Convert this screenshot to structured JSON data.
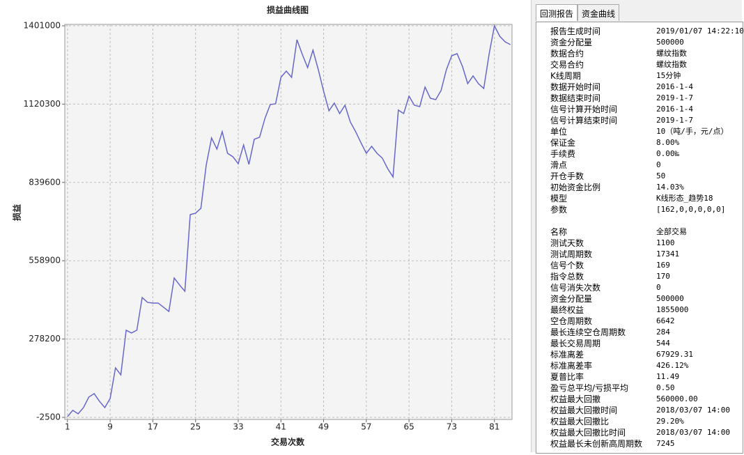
{
  "chart_data": {
    "type": "line",
    "title": "损益曲线图",
    "x_label": "交易次数",
    "y_label": "损益",
    "x": [
      1,
      2,
      3,
      4,
      5,
      6,
      7,
      8,
      9,
      10,
      11,
      12,
      13,
      14,
      15,
      16,
      17,
      18,
      19,
      20,
      21,
      22,
      23,
      24,
      25,
      26,
      27,
      28,
      29,
      30,
      31,
      32,
      33,
      34,
      35,
      36,
      37,
      38,
      39,
      40,
      41,
      42,
      43,
      44,
      45,
      46,
      47,
      48,
      49,
      50,
      51,
      52,
      53,
      54,
      55,
      56,
      57,
      58,
      59,
      60,
      61,
      62,
      63,
      64,
      65,
      66,
      67,
      68,
      69,
      70,
      71,
      72,
      73,
      74,
      75,
      76,
      77,
      78,
      79,
      80,
      81,
      82,
      83,
      84
    ],
    "series": [
      {
        "color": "#6666cc",
        "values": [
          0,
          22700,
          10200,
          32600,
          70100,
          82600,
          55100,
          32600,
          65100,
          175000,
          150000,
          309800,
          299800,
          309800,
          427200,
          409700,
          407200,
          407200,
          392200,
          377200,
          497100,
          472100,
          449600,
          724300,
          729300,
          746800,
          901600,
          999000,
          959000,
          1021500,
          944000,
          931600,
          906600,
          974000,
          904100,
          994000,
          1001500,
          1068900,
          1118800,
          1121300,
          1216200,
          1238700,
          1216200,
          1351100,
          1298600,
          1251200,
          1313600,
          1243700,
          1166300,
          1096400,
          1123800,
          1086400,
          1116300,
          1056400,
          1021500,
          981500,
          944000,
          969000,
          944000,
          926600,
          889100,
          859200,
          1098900,
          1086400,
          1148800,
          1116300,
          1111300,
          1181300,
          1141300,
          1136300,
          1168800,
          1243700,
          1293600,
          1301100,
          1256200,
          1193700,
          1221200,
          1193700,
          1176300,
          1298600,
          1401000,
          1363500,
          1343600,
          1333600
        ]
      }
    ],
    "xlim": [
      0.5,
      84.3
    ],
    "xticks": [
      1,
      9,
      17,
      25,
      33,
      41,
      49,
      57,
      65,
      73,
      81
    ],
    "ylim": [
      -2500,
      1401000
    ],
    "yticks": [
      -2500,
      278200,
      558900,
      839600,
      1120300,
      1401000
    ],
    "grid": true
  },
  "report": {
    "tabs": [
      "回测报告",
      "资金曲线"
    ],
    "groups": [
      [
        [
          "报告生成时间",
          "2019/01/07 14:22:10"
        ],
        [
          "资金分配量",
          "500000"
        ],
        [
          "数据合约",
          "螺纹指数"
        ],
        [
          "交易合约",
          "螺纹指数"
        ],
        [
          "K线周期",
          "15分钟"
        ],
        [
          "数据开始时间",
          "2016-1-4"
        ],
        [
          "数据结束时间",
          "2019-1-7"
        ],
        [
          "信号计算开始时间",
          "2016-1-4"
        ],
        [
          "信号计算结束时间",
          "2019-1-7"
        ],
        [
          "单位",
          "10（吨/手，元/点）"
        ],
        [
          "保证金",
          "8.00%"
        ],
        [
          "手续费",
          "0.00‰"
        ],
        [
          "滑点",
          "0"
        ],
        [
          "开仓手数",
          "50"
        ],
        [
          "初始资金比例",
          "14.03%"
        ],
        [
          "模型",
          "K线形态_趋势18"
        ],
        [
          "参数",
          "[162,0,0,0,0,0]"
        ]
      ],
      [
        [
          "名称",
          "全部交易"
        ],
        [
          "测试天数",
          "1100"
        ],
        [
          "测试周期数",
          "17341"
        ],
        [
          "信号个数",
          "169"
        ],
        [
          "指令总数",
          "170"
        ],
        [
          "信号消失次数",
          "0"
        ],
        [
          "资金分配量",
          "500000"
        ],
        [
          "最终权益",
          "1855000"
        ],
        [
          "空仓周期数",
          "6642"
        ],
        [
          "最长连续空仓周期数",
          "284"
        ],
        [
          "最长交易周期",
          "544"
        ],
        [
          "标准离差",
          "67929.31"
        ],
        [
          "标准离差率",
          "426.12%"
        ],
        [
          "夏普比率",
          "11.49"
        ],
        [
          "盈亏总平均/亏损平均",
          "0.50"
        ],
        [
          "权益最大回撤",
          "560000.00"
        ],
        [
          "权益最大回撤时间",
          "2018/03/07 14:00"
        ],
        [
          "权益最大回撤比",
          "29.20%"
        ],
        [
          "权益最大回撤比时间",
          "2018/03/07 14:00"
        ],
        [
          "权益最长未创新高周期数",
          "7245"
        ]
      ]
    ]
  }
}
